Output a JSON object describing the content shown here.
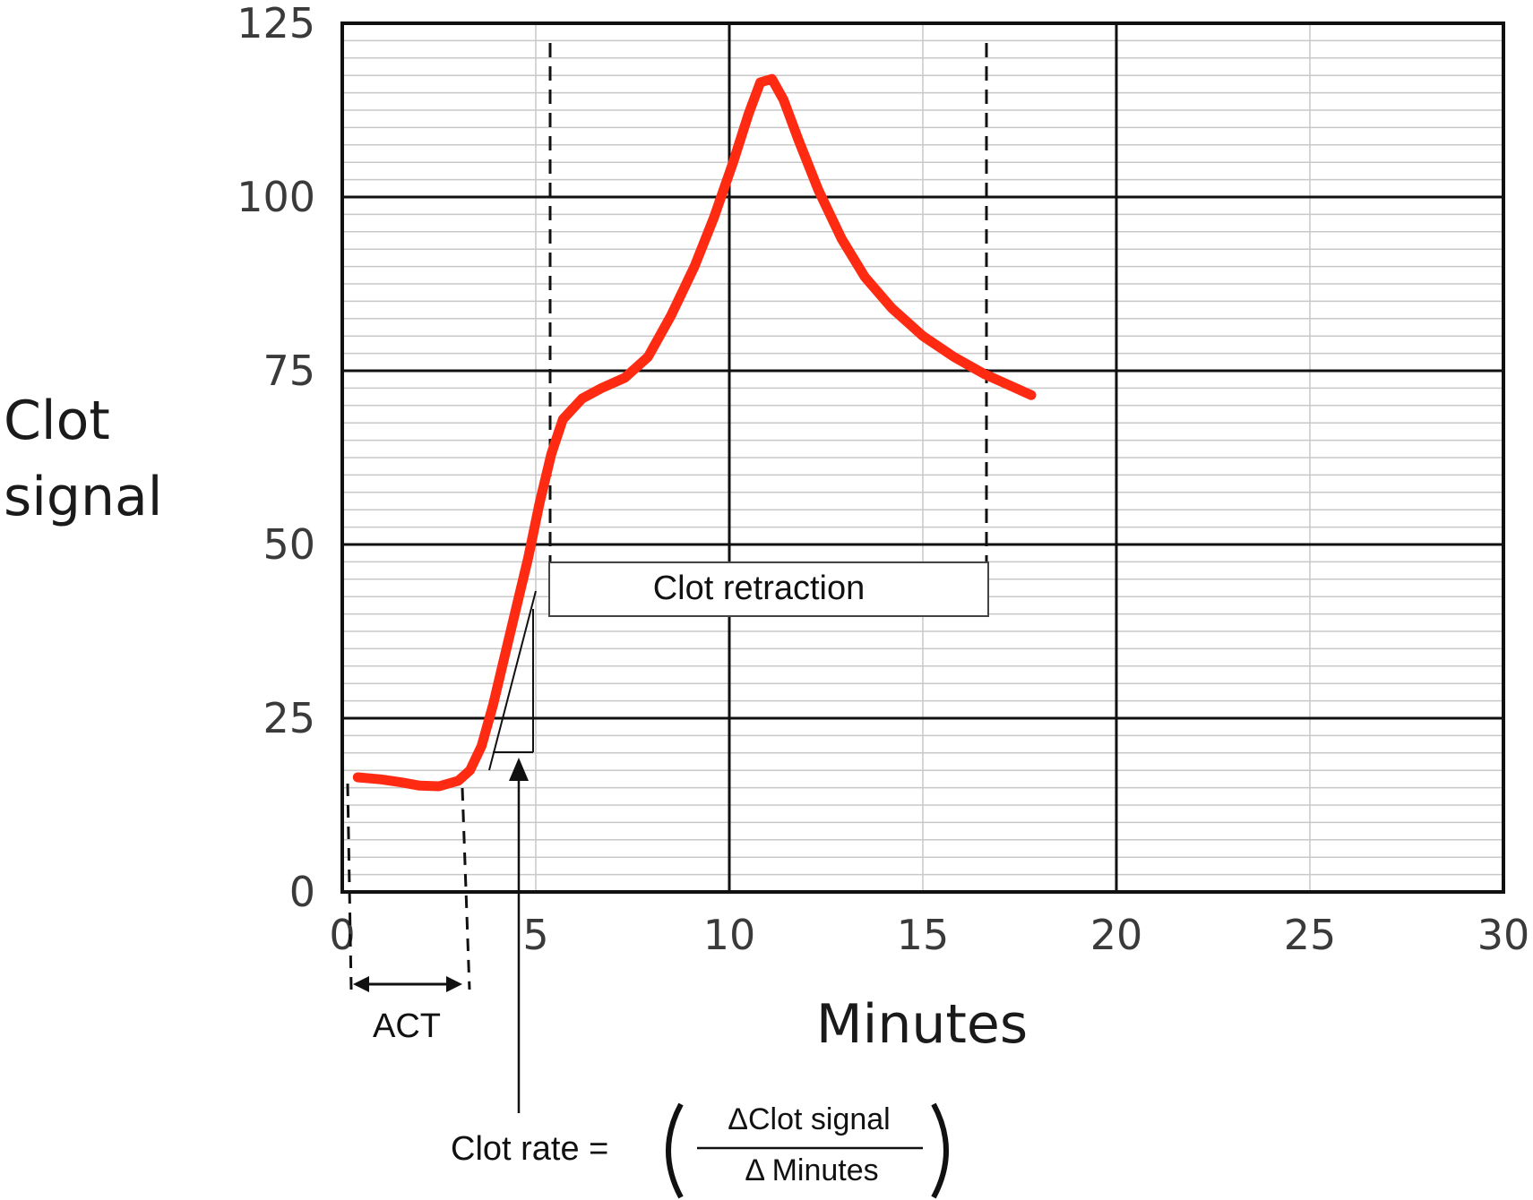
{
  "chart_data": {
    "type": "line",
    "xlabel": "Minutes",
    "ylabel_lines": [
      "Clot",
      "signal"
    ],
    "xlim": [
      0,
      30
    ],
    "ylim": [
      0,
      125
    ],
    "x_ticks": [
      "0",
      "5",
      "10",
      "15",
      "20",
      "25",
      "30"
    ],
    "y_ticks": [
      "125",
      "100",
      "75",
      "50",
      "25",
      "0"
    ],
    "grid": true,
    "series": [
      {
        "color": "#ff2a12",
        "points": [
          [
            0.4,
            16.5
          ],
          [
            1.0,
            16.2
          ],
          [
            1.5,
            15.8
          ],
          [
            2.0,
            15.3
          ],
          [
            2.5,
            15.2
          ],
          [
            3.0,
            16.0
          ],
          [
            3.3,
            17.5
          ],
          [
            3.6,
            21.0
          ],
          [
            3.9,
            27.0
          ],
          [
            4.2,
            34.0
          ],
          [
            4.5,
            41.0
          ],
          [
            4.8,
            48.0
          ],
          [
            5.1,
            56.0
          ],
          [
            5.4,
            63.0
          ],
          [
            5.7,
            68.0
          ],
          [
            6.2,
            71.0
          ],
          [
            6.7,
            72.5
          ],
          [
            7.3,
            74.0
          ],
          [
            7.9,
            77.0
          ],
          [
            8.5,
            83.0
          ],
          [
            9.1,
            90.0
          ],
          [
            9.6,
            97.0
          ],
          [
            10.1,
            105.0
          ],
          [
            10.5,
            112.0
          ],
          [
            10.8,
            116.5
          ],
          [
            11.1,
            117.0
          ],
          [
            11.4,
            114.0
          ],
          [
            11.8,
            108.0
          ],
          [
            12.3,
            101.0
          ],
          [
            12.9,
            94.0
          ],
          [
            13.5,
            88.5
          ],
          [
            14.2,
            84.0
          ],
          [
            15.0,
            80.0
          ],
          [
            15.8,
            77.0
          ],
          [
            16.6,
            74.5
          ],
          [
            17.2,
            73.0
          ],
          [
            17.8,
            71.5
          ]
        ]
      }
    ],
    "annotations": {
      "act_label": "ACT",
      "clot_retraction_label": "Clot retraction",
      "clot_rate_label": "Clot rate =",
      "numerator": "ΔClot signal",
      "denominator": "Δ Minutes"
    }
  }
}
